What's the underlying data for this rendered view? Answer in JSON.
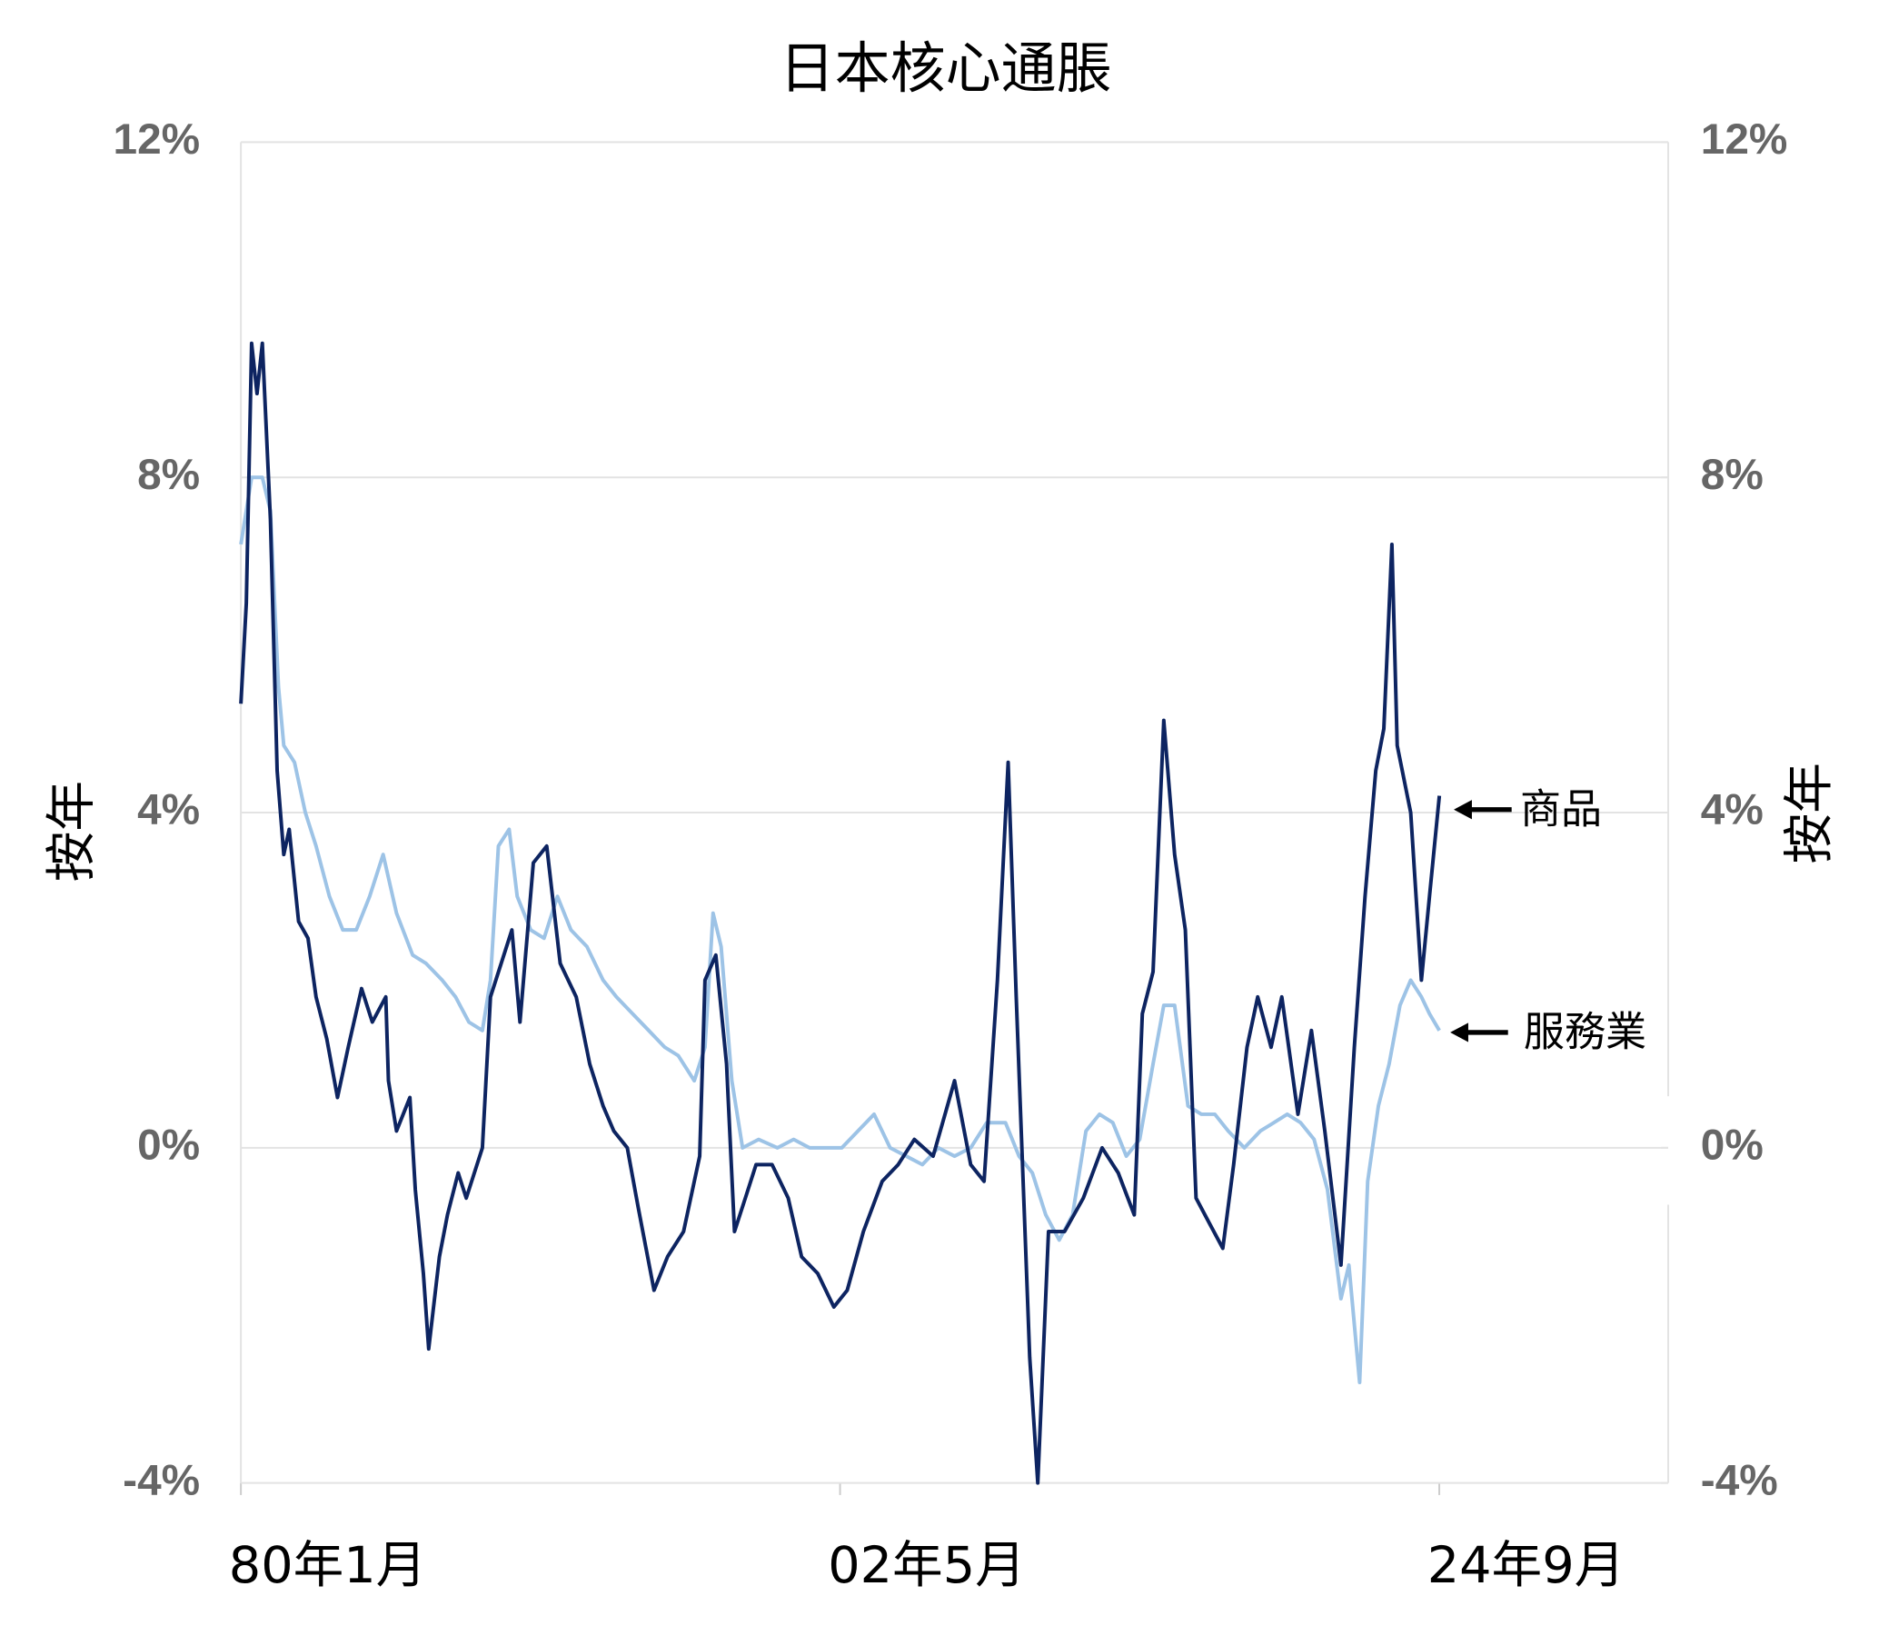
{
  "chart_data": {
    "type": "line",
    "title": "日本核心通脹",
    "y_label": "按年",
    "y2_label": "按年",
    "annotations": [
      "商品",
      "服務業"
    ],
    "xlim": [
      1980.0,
      2033.2
    ],
    "xticks": [
      {
        "value": 1980.0,
        "label": "80年1月"
      },
      {
        "value": 2002.333,
        "label": "02年5月"
      },
      {
        "value": 2024.667,
        "label": "24年9月"
      }
    ],
    "ylim": [
      -4,
      12
    ],
    "yticks": [
      {
        "value": -4,
        "label": "-4%"
      },
      {
        "value": 0,
        "label": "0%"
      },
      {
        "value": 4,
        "label": "4%"
      },
      {
        "value": 8,
        "label": "8%"
      },
      {
        "value": 12,
        "label": "12%"
      }
    ],
    "y2lim": [
      -4,
      12
    ],
    "y2ticks": [
      {
        "value": -4,
        "label": "-4%"
      },
      {
        "value": 0,
        "label": "0%"
      },
      {
        "value": 4,
        "label": "4%"
      },
      {
        "value": 8,
        "label": "8%"
      },
      {
        "value": 12,
        "label": "12%"
      }
    ],
    "grid": true,
    "series": [
      {
        "name": "商品",
        "color": "#0d2461",
        "x": [
          1980.0,
          1980.2,
          1980.4,
          1980.6,
          1980.8,
          1981.1,
          1981.35,
          1981.6,
          1981.8,
          1982.15,
          1982.5,
          1982.8,
          1983.2,
          1983.6,
          1984.0,
          1984.5,
          1984.9,
          1985.4,
          1985.5,
          1985.8,
          1986.3,
          1986.5,
          1986.8,
          1987.0,
          1987.4,
          1987.7,
          1988.1,
          1988.4,
          1989.0,
          1989.3,
          1989.7,
          1990.1,
          1990.4,
          1990.9,
          1991.4,
          1991.9,
          1992.5,
          1993.0,
          1993.5,
          1993.9,
          1994.4,
          1994.8,
          1995.4,
          1995.9,
          1996.5,
          1997.1,
          1997.3,
          1997.7,
          1998.1,
          1998.4,
          1998.8,
          1999.2,
          1999.8,
          2000.4,
          2000.9,
          2001.5,
          2002.1,
          2002.6,
          2003.2,
          2003.9,
          2004.5,
          2005.1,
          2005.8,
          2006.6,
          2007.2,
          2007.7,
          2008.2,
          2008.6,
          2008.9,
          2009.4,
          2009.7,
          2010.1,
          2010.7,
          2011.4,
          2012.1,
          2012.7,
          2013.3,
          2013.6,
          2014.0,
          2014.4,
          2014.8,
          2015.2,
          2015.6,
          2016.1,
          2016.6,
          2017.0,
          2017.5,
          2017.9,
          2018.4,
          2018.8,
          2019.4,
          2019.9,
          2020.4,
          2021.0,
          2021.5,
          2021.9,
          2022.3,
          2022.6,
          2022.9,
          2023.1,
          2023.6,
          2024.0,
          2024.3,
          2024.67
        ],
        "values": [
          5.3,
          6.5,
          9.6,
          9.0,
          9.6,
          7.5,
          4.5,
          3.5,
          3.8,
          2.7,
          2.5,
          1.8,
          1.3,
          0.6,
          1.2,
          1.9,
          1.5,
          1.8,
          0.8,
          0.2,
          0.6,
          -0.5,
          -1.5,
          -2.4,
          -1.3,
          -0.8,
          -0.3,
          -0.6,
          0.0,
          1.8,
          2.2,
          2.6,
          1.5,
          3.4,
          3.6,
          2.2,
          1.8,
          1.0,
          0.5,
          0.2,
          0.0,
          -0.7,
          -1.7,
          -1.3,
          -1.0,
          -0.1,
          2.0,
          2.3,
          1.0,
          -1.0,
          -0.6,
          -0.2,
          -0.2,
          -0.6,
          -1.3,
          -1.5,
          -1.9,
          -1.7,
          -1.0,
          -0.4,
          -0.2,
          0.1,
          -0.1,
          0.8,
          -0.2,
          -0.4,
          2.0,
          4.6,
          1.8,
          -2.5,
          -4.0,
          -1.0,
          -1.0,
          -0.6,
          0.0,
          -0.3,
          -0.8,
          1.6,
          2.1,
          5.1,
          3.5,
          2.6,
          -0.6,
          -0.9,
          -1.2,
          -0.2,
          1.2,
          1.8,
          1.2,
          1.8,
          0.4,
          1.4,
          0.2,
          -1.4,
          1.2,
          3.0,
          4.5,
          5.0,
          7.2,
          4.8,
          4.0,
          2.0,
          3.0,
          4.2
        ]
      },
      {
        "name": "服務業",
        "color": "#9dc3e6",
        "x": [
          1980.0,
          1980.4,
          1980.8,
          1981.1,
          1981.4,
          1981.6,
          1982.0,
          1982.4,
          1982.8,
          1983.3,
          1983.8,
          1984.3,
          1984.8,
          1985.3,
          1985.8,
          1986.4,
          1986.9,
          1987.5,
          1988.0,
          1988.5,
          1989.0,
          1989.3,
          1989.6,
          1990.0,
          1990.3,
          1990.8,
          1991.3,
          1991.8,
          1992.3,
          1992.9,
          1993.5,
          1994.0,
          1994.6,
          1995.2,
          1995.8,
          1996.3,
          1996.9,
          1997.3,
          1997.6,
          1997.9,
          1998.3,
          1998.7,
          1999.3,
          2000.0,
          2000.6,
          2001.2,
          2001.8,
          2002.4,
          2003.0,
          2003.6,
          2004.2,
          2004.8,
          2005.4,
          2006.0,
          2006.6,
          2007.2,
          2007.8,
          2008.5,
          2009.0,
          2009.5,
          2010.0,
          2010.5,
          2011.0,
          2011.5,
          2012.0,
          2012.5,
          2013.0,
          2013.5,
          2014.0,
          2014.4,
          2014.8,
          2015.3,
          2015.8,
          2016.3,
          2016.8,
          2017.4,
          2018.0,
          2018.5,
          2019.0,
          2019.5,
          2020.0,
          2020.5,
          2021.0,
          2021.3,
          2021.7,
          2022.0,
          2022.4,
          2022.8,
          2023.2,
          2023.6,
          2024.0,
          2024.3,
          2024.67
        ],
        "values": [
          7.2,
          8.0,
          8.0,
          7.6,
          5.5,
          4.8,
          4.6,
          4.0,
          3.6,
          3.0,
          2.6,
          2.6,
          3.0,
          3.5,
          2.8,
          2.3,
          2.2,
          2.0,
          1.8,
          1.5,
          1.4,
          2.0,
          3.6,
          3.8,
          3.0,
          2.6,
          2.5,
          3.0,
          2.6,
          2.4,
          2.0,
          1.8,
          1.6,
          1.4,
          1.2,
          1.1,
          0.8,
          1.2,
          2.8,
          2.4,
          0.8,
          0.0,
          0.1,
          0.0,
          0.1,
          0.0,
          0.0,
          0.0,
          0.2,
          0.4,
          0.0,
          -0.1,
          -0.2,
          0.0,
          -0.1,
          0.0,
          0.3,
          0.3,
          -0.1,
          -0.3,
          -0.8,
          -1.1,
          -0.8,
          0.2,
          0.4,
          0.3,
          -0.1,
          0.1,
          1.0,
          1.7,
          1.7,
          0.5,
          0.4,
          0.4,
          0.2,
          0.0,
          0.2,
          0.3,
          0.4,
          0.3,
          0.1,
          -0.5,
          -1.8,
          -1.4,
          -2.8,
          -0.4,
          0.5,
          1.0,
          1.7,
          2.0,
          1.8,
          1.6,
          1.4
        ]
      }
    ]
  }
}
